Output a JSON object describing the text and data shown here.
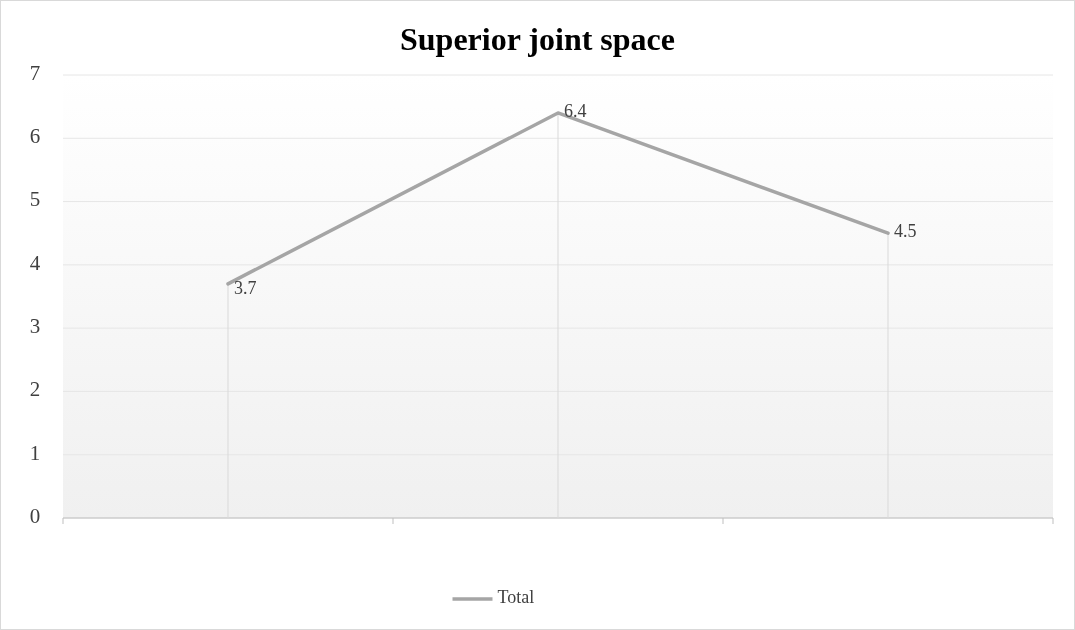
{
  "chart_data": {
    "type": "line",
    "title": "Superior joint space",
    "categories": [
      null,
      null,
      null
    ],
    "series": [
      {
        "name": "Total",
        "color": "#a5a5a5",
        "values": [
          3.7,
          6.4,
          4.5
        ]
      }
    ],
    "ylim": [
      0,
      7
    ],
    "yticks": [
      0,
      1,
      2,
      3,
      4,
      5,
      6,
      7
    ],
    "grid": "y",
    "legend": "bottom",
    "data_labels": true,
    "marker": "none",
    "line_style": "solid"
  }
}
